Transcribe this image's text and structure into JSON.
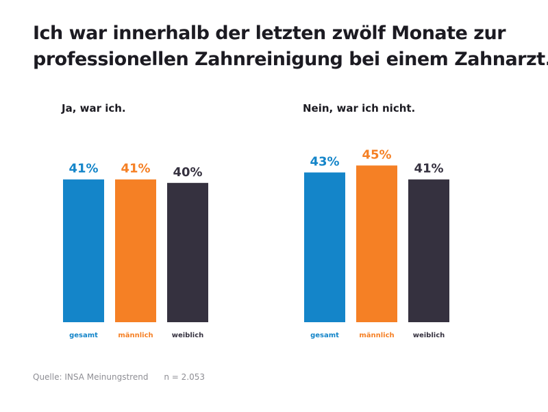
{
  "title_lines": [
    "Ich war innerhalb der letzten zwölf Monate zur",
    "professionellen Zahnreinigung bei einem Zahnarzt."
  ],
  "source": "Quelle: INSA Meinungstrend",
  "sample": "n = 2.053",
  "colors": {
    "gesamt": "#1485c9",
    "maennlich": "#f58025",
    "weiblich": "#35313f"
  },
  "chart_data": [
    {
      "type": "bar",
      "title": "Ja, war ich.",
      "categories": [
        "gesamt",
        "männlich",
        "weiblich"
      ],
      "values": [
        41,
        41,
        40
      ],
      "value_labels": [
        "41%",
        "41%",
        "40%"
      ],
      "unit": "%"
    },
    {
      "type": "bar",
      "title": "Nein, war ich nicht.",
      "categories": [
        "gesamt",
        "männlich",
        "weiblich"
      ],
      "values": [
        43,
        45,
        41
      ],
      "value_labels": [
        "43%",
        "45%",
        "41%"
      ],
      "unit": "%"
    }
  ]
}
